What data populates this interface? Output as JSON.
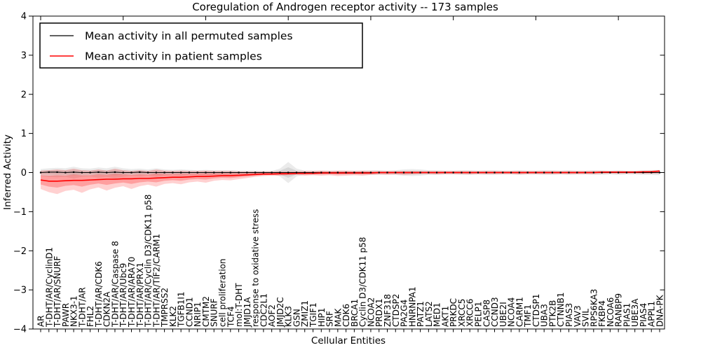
{
  "figure": {
    "title": "Coregulation of Androgen receptor activity -- 173 samples",
    "xlabel": "Cellular Entities",
    "ylabel": "Inferred Activity"
  },
  "chart_data": {
    "type": "line",
    "title": "Coregulation of Androgen receptor activity -- 173 samples",
    "xlabel": "Cellular Entities",
    "ylabel": "Inferred Activity",
    "ylim": [
      -4,
      4
    ],
    "yticks": [
      -4,
      -3,
      -2,
      -1,
      0,
      1,
      2,
      3,
      4
    ],
    "grid": false,
    "legend_position": "upper left",
    "categories": [
      "AR",
      "T-DHT/AR/CyclinD1",
      "T-DHT/AR/SNURF",
      "PAWR",
      "NKX3-1",
      "T-DHT/AR",
      "FHL2",
      "T-DHT/AR/CDK6",
      "CDKN2A",
      "T-DHT/AR/Caspase 8",
      "T-DHT/AR/Ubc9",
      "T-DHT/AR/ARA70",
      "T-DHT/AR/PRX1",
      "T-DHT/AR/Cyclin D3/CDK11 p58",
      "T-DHT/AR/TIF2/CARM1",
      "TMPRSS2",
      "KLK2",
      "TGFB1I1",
      "CCND1",
      "NRIP1",
      "CMTM2",
      "SNURF",
      "cell proliferation",
      "TCF4",
      "mol:T-DHT",
      "JMJD1A",
      "response to oxidative stress",
      "CDC2L1",
      "AOF2",
      "JMJD2C",
      "KLK3",
      "GSN",
      "ZMIZ1",
      "TGIF1",
      "HIP1",
      "SRF",
      "MAK",
      "CDK6",
      "BRCA1",
      "Cyclin D3/CDK11 p58",
      "NCOA2",
      "PRDX1",
      "ZNF318",
      "CTDSP2",
      "PA2G4",
      "HNRNPA1",
      "PATZ1",
      "LATS2",
      "MED1",
      "AKT1",
      "PRKDC",
      "XRCC5",
      "XRCC6",
      "PELP1",
      "CASP8",
      "CCND3",
      "UBE2I",
      "NCOA4",
      "CARM1",
      "TMF1",
      "CTDSP1",
      "UBA3",
      "PTK2B",
      "CTNNB1",
      "PIAS3",
      "VAV3",
      "SVIL",
      "RPS6KA3",
      "FKBP4",
      "NCOA6",
      "RANBP9",
      "PIAS1",
      "UBE3A",
      "PIAS4",
      "APPL1",
      "DNA-PK"
    ],
    "series": [
      {
        "name": "Mean activity in all permuted samples",
        "color": "#000000",
        "band_color": "#808080",
        "values": [
          0,
          0.01,
          0.01,
          0,
          0.01,
          0,
          0,
          0.01,
          0,
          0.01,
          0,
          0,
          0.01,
          0,
          0,
          0,
          0,
          0,
          0,
          0,
          0,
          0,
          0,
          0,
          0,
          0,
          0,
          0,
          0,
          0,
          0,
          0,
          0,
          0,
          0,
          0,
          0,
          0,
          0,
          0,
          0,
          0,
          0,
          0,
          0,
          0,
          0,
          0,
          0,
          0,
          0,
          0,
          0,
          0,
          0,
          0,
          0,
          0,
          0,
          0,
          0,
          0,
          0,
          0,
          0,
          0,
          0,
          0,
          0,
          0,
          0,
          0,
          0,
          0,
          0,
          0
        ],
        "band_lo": [
          -0.09,
          -0.11,
          -0.12,
          -0.11,
          -0.15,
          -0.11,
          -0.1,
          -0.13,
          -0.11,
          -0.15,
          -0.11,
          -0.09,
          -0.1,
          -0.08,
          -0.11,
          -0.08,
          -0.07,
          -0.08,
          -0.07,
          -0.06,
          -0.07,
          -0.06,
          -0.06,
          -0.06,
          -0.05,
          -0.05,
          -0.05,
          -0.04,
          -0.04,
          -0.1,
          -0.27,
          -0.1,
          -0.05,
          -0.05,
          -0.05,
          -0.05,
          -0.05,
          -0.05,
          -0.05,
          -0.05,
          -0.06,
          -0.06,
          -0.05,
          -0.06,
          -0.08,
          -0.09,
          -0.08,
          -0.06,
          -0.06,
          -0.05,
          -0.05,
          -0.06,
          -0.06,
          -0.05,
          -0.06,
          -0.06,
          -0.05,
          -0.05,
          -0.06,
          -0.05,
          -0.05,
          -0.06,
          -0.06,
          -0.05,
          -0.06,
          -0.05,
          -0.05,
          -0.06,
          -0.06,
          -0.05,
          -0.06,
          -0.05,
          -0.05,
          -0.06,
          -0.06,
          -0.07
        ],
        "band_hi": [
          0.09,
          0.11,
          0.12,
          0.11,
          0.15,
          0.11,
          0.1,
          0.13,
          0.11,
          0.15,
          0.11,
          0.09,
          0.1,
          0.08,
          0.11,
          0.08,
          0.07,
          0.08,
          0.07,
          0.06,
          0.07,
          0.06,
          0.06,
          0.06,
          0.05,
          0.05,
          0.05,
          0.04,
          0.04,
          0.1,
          0.27,
          0.1,
          0.05,
          0.05,
          0.05,
          0.05,
          0.05,
          0.05,
          0.05,
          0.05,
          0.06,
          0.06,
          0.05,
          0.06,
          0.08,
          0.09,
          0.08,
          0.06,
          0.06,
          0.05,
          0.05,
          0.06,
          0.06,
          0.05,
          0.06,
          0.06,
          0.05,
          0.05,
          0.06,
          0.05,
          0.05,
          0.06,
          0.06,
          0.05,
          0.06,
          0.05,
          0.05,
          0.06,
          0.06,
          0.05,
          0.06,
          0.05,
          0.05,
          0.06,
          0.06,
          0.07
        ]
      },
      {
        "name": "Mean activity in patient samples",
        "color": "#ff0000",
        "band_color": "#ff0000",
        "values": [
          -0.19,
          -0.22,
          -0.22,
          -0.21,
          -0.2,
          -0.2,
          -0.19,
          -0.18,
          -0.17,
          -0.17,
          -0.16,
          -0.16,
          -0.15,
          -0.15,
          -0.14,
          -0.13,
          -0.12,
          -0.12,
          -0.11,
          -0.1,
          -0.1,
          -0.09,
          -0.08,
          -0.08,
          -0.07,
          -0.06,
          -0.05,
          -0.04,
          -0.04,
          -0.03,
          -0.03,
          -0.02,
          -0.02,
          -0.02,
          -0.01,
          -0.01,
          -0.01,
          -0.01,
          -0.01,
          -0.01,
          -0.01,
          0,
          0,
          0,
          0,
          0,
          0,
          0,
          0,
          0,
          0,
          0,
          0,
          0,
          0,
          0,
          0,
          0,
          0,
          0,
          0,
          0,
          0,
          0,
          0,
          0,
          0,
          0,
          0.01,
          0.01,
          0.01,
          0.01,
          0.01,
          0.02,
          0.02,
          0.04
        ],
        "band_lo": [
          -0.42,
          -0.5,
          -0.55,
          -0.47,
          -0.44,
          -0.52,
          -0.43,
          -0.38,
          -0.46,
          -0.39,
          -0.35,
          -0.42,
          -0.35,
          -0.31,
          -0.36,
          -0.29,
          -0.27,
          -0.3,
          -0.25,
          -0.23,
          -0.26,
          -0.21,
          -0.19,
          -0.2,
          -0.17,
          -0.14,
          -0.11,
          -0.09,
          -0.08,
          -0.08,
          -0.07,
          -0.06,
          -0.08,
          -0.07,
          -0.08,
          -0.07,
          -0.09,
          -0.08,
          -0.07,
          -0.08,
          -0.06,
          -0.05,
          -0.06,
          -0.05,
          -0.06,
          -0.05,
          -0.04,
          -0.04,
          -0.05,
          -0.04,
          -0.04,
          -0.04,
          -0.05,
          -0.04,
          -0.04,
          -0.04,
          -0.04,
          -0.04,
          -0.05,
          -0.04,
          -0.04,
          -0.04,
          -0.04,
          -0.04,
          -0.04,
          -0.04,
          -0.04,
          -0.04,
          -0.03,
          -0.03,
          -0.03,
          -0.03,
          -0.03,
          -0.03,
          -0.03,
          -0.02
        ],
        "band_hi": [
          0.05,
          0.06,
          0.08,
          0.06,
          0.1,
          0.06,
          0.05,
          0.08,
          0.05,
          0.1,
          0.06,
          0.04,
          0.06,
          0.04,
          0.08,
          0.05,
          0.04,
          0.05,
          0.04,
          0.04,
          0.05,
          0.04,
          0.04,
          0.04,
          0.03,
          0.03,
          0.03,
          0.03,
          0.03,
          0.03,
          0.03,
          0.03,
          0.04,
          0.04,
          0.05,
          0.04,
          0.05,
          0.05,
          0.04,
          0.05,
          0.04,
          0.04,
          0.04,
          0.04,
          0.04,
          0.04,
          0.04,
          0.04,
          0.04,
          0.04,
          0.04,
          0.04,
          0.04,
          0.04,
          0.04,
          0.04,
          0.04,
          0.04,
          0.04,
          0.04,
          0.04,
          0.04,
          0.04,
          0.04,
          0.04,
          0.04,
          0.04,
          0.04,
          0.04,
          0.04,
          0.04,
          0.04,
          0.04,
          0.04,
          0.05,
          0.06
        ]
      }
    ]
  }
}
